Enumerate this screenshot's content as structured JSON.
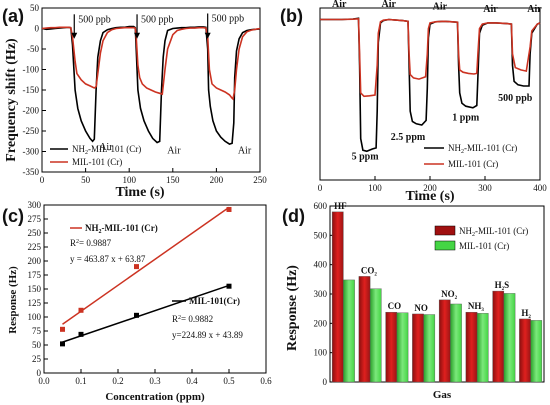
{
  "chart_data": [
    {
      "panel_label": "(a)",
      "type": "line",
      "xlabel": "Time (s)",
      "ylabel": "Frequency shift (Hz)",
      "xlim": [
        0,
        250
      ],
      "ylim": [
        -350,
        50
      ],
      "xticks": [
        0,
        50,
        100,
        150,
        200,
        250
      ],
      "yticks": [
        -350,
        -300,
        -250,
        -200,
        -150,
        -100,
        -50,
        0,
        50
      ],
      "annotations": [
        {
          "text": "500 ppb",
          "x": 37,
          "y": 20
        },
        {
          "text": "500 ppb",
          "x": 109,
          "y": 20
        },
        {
          "text": "500 ppb",
          "x": 190,
          "y": 22
        }
      ],
      "air_labels": [
        {
          "text": "Air",
          "x": 61,
          "y": -272
        },
        {
          "text": "Air",
          "x": 139,
          "y": -280
        },
        {
          "text": "Air",
          "x": 220,
          "y": -280
        }
      ],
      "legend": "bottom-left",
      "series": [
        {
          "name": "NH2-MIL-101 (Cr)",
          "name_prefix": "NH",
          "name_sub": "2",
          "name_rest": "-MIL-101 (Cr)",
          "color": "#000000",
          "x": [
            0,
            5,
            10,
            15,
            20,
            25,
            30,
            33,
            35,
            38,
            41,
            45,
            50,
            55,
            58,
            60,
            62,
            64,
            67,
            70,
            75,
            80,
            85,
            90,
            95,
            100,
            103,
            105,
            107,
            108,
            110,
            113,
            117,
            122,
            127,
            132,
            135,
            137,
            139,
            141,
            144,
            150,
            155,
            160,
            165,
            170,
            175,
            180,
            185,
            188,
            190,
            191,
            193,
            196,
            200,
            205,
            210,
            215,
            218,
            220,
            221,
            223,
            226,
            230,
            235,
            240,
            245,
            250
          ],
          "y": [
            0,
            -2,
            -1,
            0,
            1,
            2,
            3,
            2,
            -40,
            -150,
            -195,
            -225,
            -250,
            -268,
            -275,
            -270,
            -150,
            -70,
            -30,
            -10,
            -3,
            0,
            2,
            3,
            3,
            5,
            5,
            5,
            2,
            -50,
            -150,
            -195,
            -225,
            -250,
            -268,
            -278,
            -275,
            -150,
            -70,
            -30,
            -5,
            0,
            1,
            2,
            2,
            3,
            3,
            4,
            4,
            3,
            -50,
            -150,
            -190,
            -225,
            -250,
            -265,
            -275,
            -282,
            -280,
            -230,
            -120,
            -55,
            -25,
            -10,
            -5,
            -3,
            -2,
            -1
          ]
        },
        {
          "name": "MIL-101 (Cr)",
          "color": "#cc3322",
          "x": [
            0,
            5,
            10,
            15,
            20,
            25,
            30,
            33,
            35,
            38,
            40,
            45,
            50,
            55,
            60,
            62,
            64,
            67,
            70,
            75,
            80,
            85,
            90,
            95,
            100,
            103,
            105,
            107,
            108,
            110,
            112,
            115,
            120,
            125,
            130,
            135,
            138,
            139,
            141,
            144,
            150,
            155,
            160,
            165,
            170,
            175,
            180,
            185,
            188,
            190,
            192,
            195,
            200,
            205,
            210,
            215,
            218,
            219,
            221,
            223,
            226,
            230,
            235,
            240,
            245,
            250
          ],
          "y": [
            0,
            1,
            2,
            2,
            3,
            3,
            3,
            2,
            -20,
            -80,
            -110,
            -125,
            -135,
            -140,
            -145,
            -142,
            -110,
            -60,
            -30,
            -10,
            -3,
            0,
            1,
            2,
            2,
            2,
            2,
            1,
            -20,
            -90,
            -120,
            -135,
            -145,
            -150,
            -155,
            -158,
            -160,
            -140,
            -100,
            -50,
            -15,
            -5,
            -2,
            0,
            1,
            1,
            2,
            2,
            1,
            -20,
            -100,
            -135,
            -145,
            -150,
            -155,
            -162,
            -170,
            -172,
            -150,
            -100,
            -50,
            -20,
            -8,
            -4,
            -2,
            0
          ]
        }
      ]
    },
    {
      "panel_label": "(b)",
      "type": "line",
      "xlabel": "Time (s)",
      "ylabel": "",
      "xlim": [
        0,
        400
      ],
      "ylim": [
        -700,
        50
      ],
      "xticks": [
        0,
        100,
        200,
        300,
        400
      ],
      "yticks": [],
      "annotations": [
        {
          "text": "5 ppm",
          "x": 82,
          "y": -610
        },
        {
          "text": "2.5 ppm",
          "x": 160,
          "y": -525
        },
        {
          "text": "1 ppm",
          "x": 265,
          "y": -440
        },
        {
          "text": "500 ppb",
          "x": 355,
          "y": -355
        }
      ],
      "air_labels": [
        {
          "text": "Air",
          "x": 35,
          "y": 10
        },
        {
          "text": "Air",
          "x": 125,
          "y": 10
        },
        {
          "text": "Air",
          "x": 218,
          "y": 0
        },
        {
          "text": "Air",
          "x": 310,
          "y": -10
        },
        {
          "text": "Air",
          "x": 390,
          "y": -10
        }
      ],
      "legend": "bottom-right",
      "series": [
        {
          "name": "NH2-MIL-101 (Cr)",
          "name_prefix": "NH",
          "name_sub": "2",
          "name_rest": "-MIL-101 (Cr)",
          "color": "#000000",
          "x": [
            0,
            20,
            40,
            60,
            70,
            72,
            74,
            78,
            85,
            95,
            102,
            104,
            106,
            110,
            115,
            125,
            135,
            150,
            160,
            162,
            164,
            168,
            175,
            185,
            193,
            195,
            197,
            200,
            210,
            225,
            240,
            250,
            252,
            254,
            258,
            265,
            278,
            285,
            287,
            290,
            295,
            305,
            320,
            340,
            348,
            350,
            353,
            360,
            370,
            380,
            382,
            385,
            395,
            400
          ],
          "y": [
            0,
            0,
            0,
            2,
            5,
            -200,
            -520,
            -570,
            -575,
            -565,
            -560,
            -400,
            -100,
            -15,
            -5,
            0,
            -2,
            -5,
            -8,
            -200,
            -400,
            -445,
            -455,
            -460,
            -440,
            -300,
            -80,
            -20,
            -10,
            -8,
            -10,
            -12,
            -200,
            -320,
            -365,
            -378,
            -385,
            -375,
            -250,
            -60,
            -25,
            -15,
            -15,
            -18,
            -20,
            -200,
            -270,
            -285,
            -290,
            -290,
            -150,
            -60,
            -20,
            -15
          ]
        },
        {
          "name": "MIL-101 (Cr)",
          "color": "#cc3322",
          "x": [
            0,
            20,
            40,
            60,
            70,
            72,
            74,
            80,
            90,
            100,
            104,
            106,
            110,
            115,
            125,
            135,
            150,
            160,
            162,
            164,
            170,
            180,
            192,
            195,
            197,
            200,
            210,
            225,
            240,
            250,
            252,
            254,
            260,
            270,
            280,
            285,
            287,
            290,
            295,
            305,
            320,
            340,
            348,
            350,
            355,
            365,
            375,
            382,
            385,
            395,
            400
          ],
          "y": [
            0,
            0,
            0,
            1,
            3,
            -150,
            -320,
            -335,
            -333,
            -330,
            -200,
            -60,
            -10,
            -3,
            0,
            -2,
            -5,
            -8,
            -150,
            -240,
            -255,
            -260,
            -250,
            -150,
            -40,
            -15,
            -10,
            -8,
            -10,
            -12,
            -150,
            -220,
            -230,
            -235,
            -238,
            -235,
            -150,
            -40,
            -20,
            -15,
            -15,
            -18,
            -20,
            -150,
            -210,
            -220,
            -225,
            -120,
            -50,
            -20,
            -15
          ]
        }
      ]
    },
    {
      "panel_label": "(c)",
      "type": "scatter",
      "xlabel": "Concentration (ppm)",
      "ylabel": "Response (Hz)",
      "xlim": [
        0.0,
        0.6
      ],
      "ylim": [
        0,
        300
      ],
      "xticks": [
        "0.0",
        "0.1",
        "0.2",
        "0.3",
        "0.4",
        "0.5",
        "0.6"
      ],
      "yticks": [
        0,
        25,
        50,
        75,
        100,
        125,
        150,
        175,
        200,
        225,
        250,
        275,
        300
      ],
      "legend": "top-left",
      "series": [
        {
          "name": "NH2-MIL-101 (Cr)",
          "name_prefix": "NH",
          "name_sub": "2",
          "name_rest": "-MIL-101 (Cr)",
          "color": "#cc3322",
          "marker": "square",
          "x": [
            0.05,
            0.1,
            0.25,
            0.5
          ],
          "y": [
            78,
            112,
            190,
            292
          ],
          "fit": {
            "slope": 463.87,
            "intercept": 63.87
          }
        },
        {
          "name": "MIL-101(Cr)",
          "color": "#000000",
          "marker": "square",
          "x": [
            0.05,
            0.1,
            0.25,
            0.5
          ],
          "y": [
            52,
            69,
            103,
            155
          ],
          "fit": {
            "slope": 224.89,
            "intercept": 43.89
          }
        }
      ],
      "fit_labels": [
        {
          "r2_prefix": "R",
          "r2_sup": "2",
          "r2_value": "= 0.9887",
          "equation": "y = 463.87 x + 63.87"
        },
        {
          "r2_prefix": "R",
          "r2_sup": "2",
          "r2_value": "= 0.9882",
          "equation": "y=224.89 x + 43.89"
        }
      ]
    },
    {
      "panel_label": "(d)",
      "type": "bar",
      "xlabel": "Gas",
      "ylabel": "Response (Hz)",
      "ylim": [
        0,
        600
      ],
      "yticks": [
        0,
        100,
        200,
        300,
        400,
        500,
        600
      ],
      "legend": "top-right",
      "categories": [
        {
          "main": "HF",
          "sub": ""
        },
        {
          "main": "CO",
          "sub": "2"
        },
        {
          "main": "CO",
          "sub": ""
        },
        {
          "main": "NO",
          "sub": ""
        },
        {
          "main": "NO",
          "sub": "2"
        },
        {
          "main": "NH",
          "sub": "3"
        },
        {
          "main": "H",
          "sub": "2",
          "tail": "S"
        },
        {
          "main": "H",
          "sub": "2"
        }
      ],
      "series": [
        {
          "name": "NH2-MIL-101 (Cr)",
          "name_prefix": "NH",
          "name_sub": "2",
          "name_rest": "-MIL-101 (Cr)",
          "color": "#e0201e",
          "values": [
            580,
            360,
            238,
            232,
            280,
            238,
            310,
            215
          ]
        },
        {
          "name": "MIL-101 (Cr)",
          "color": "#44d544",
          "values": [
            348,
            318,
            236,
            230,
            266,
            234,
            302,
            210
          ]
        }
      ]
    }
  ]
}
